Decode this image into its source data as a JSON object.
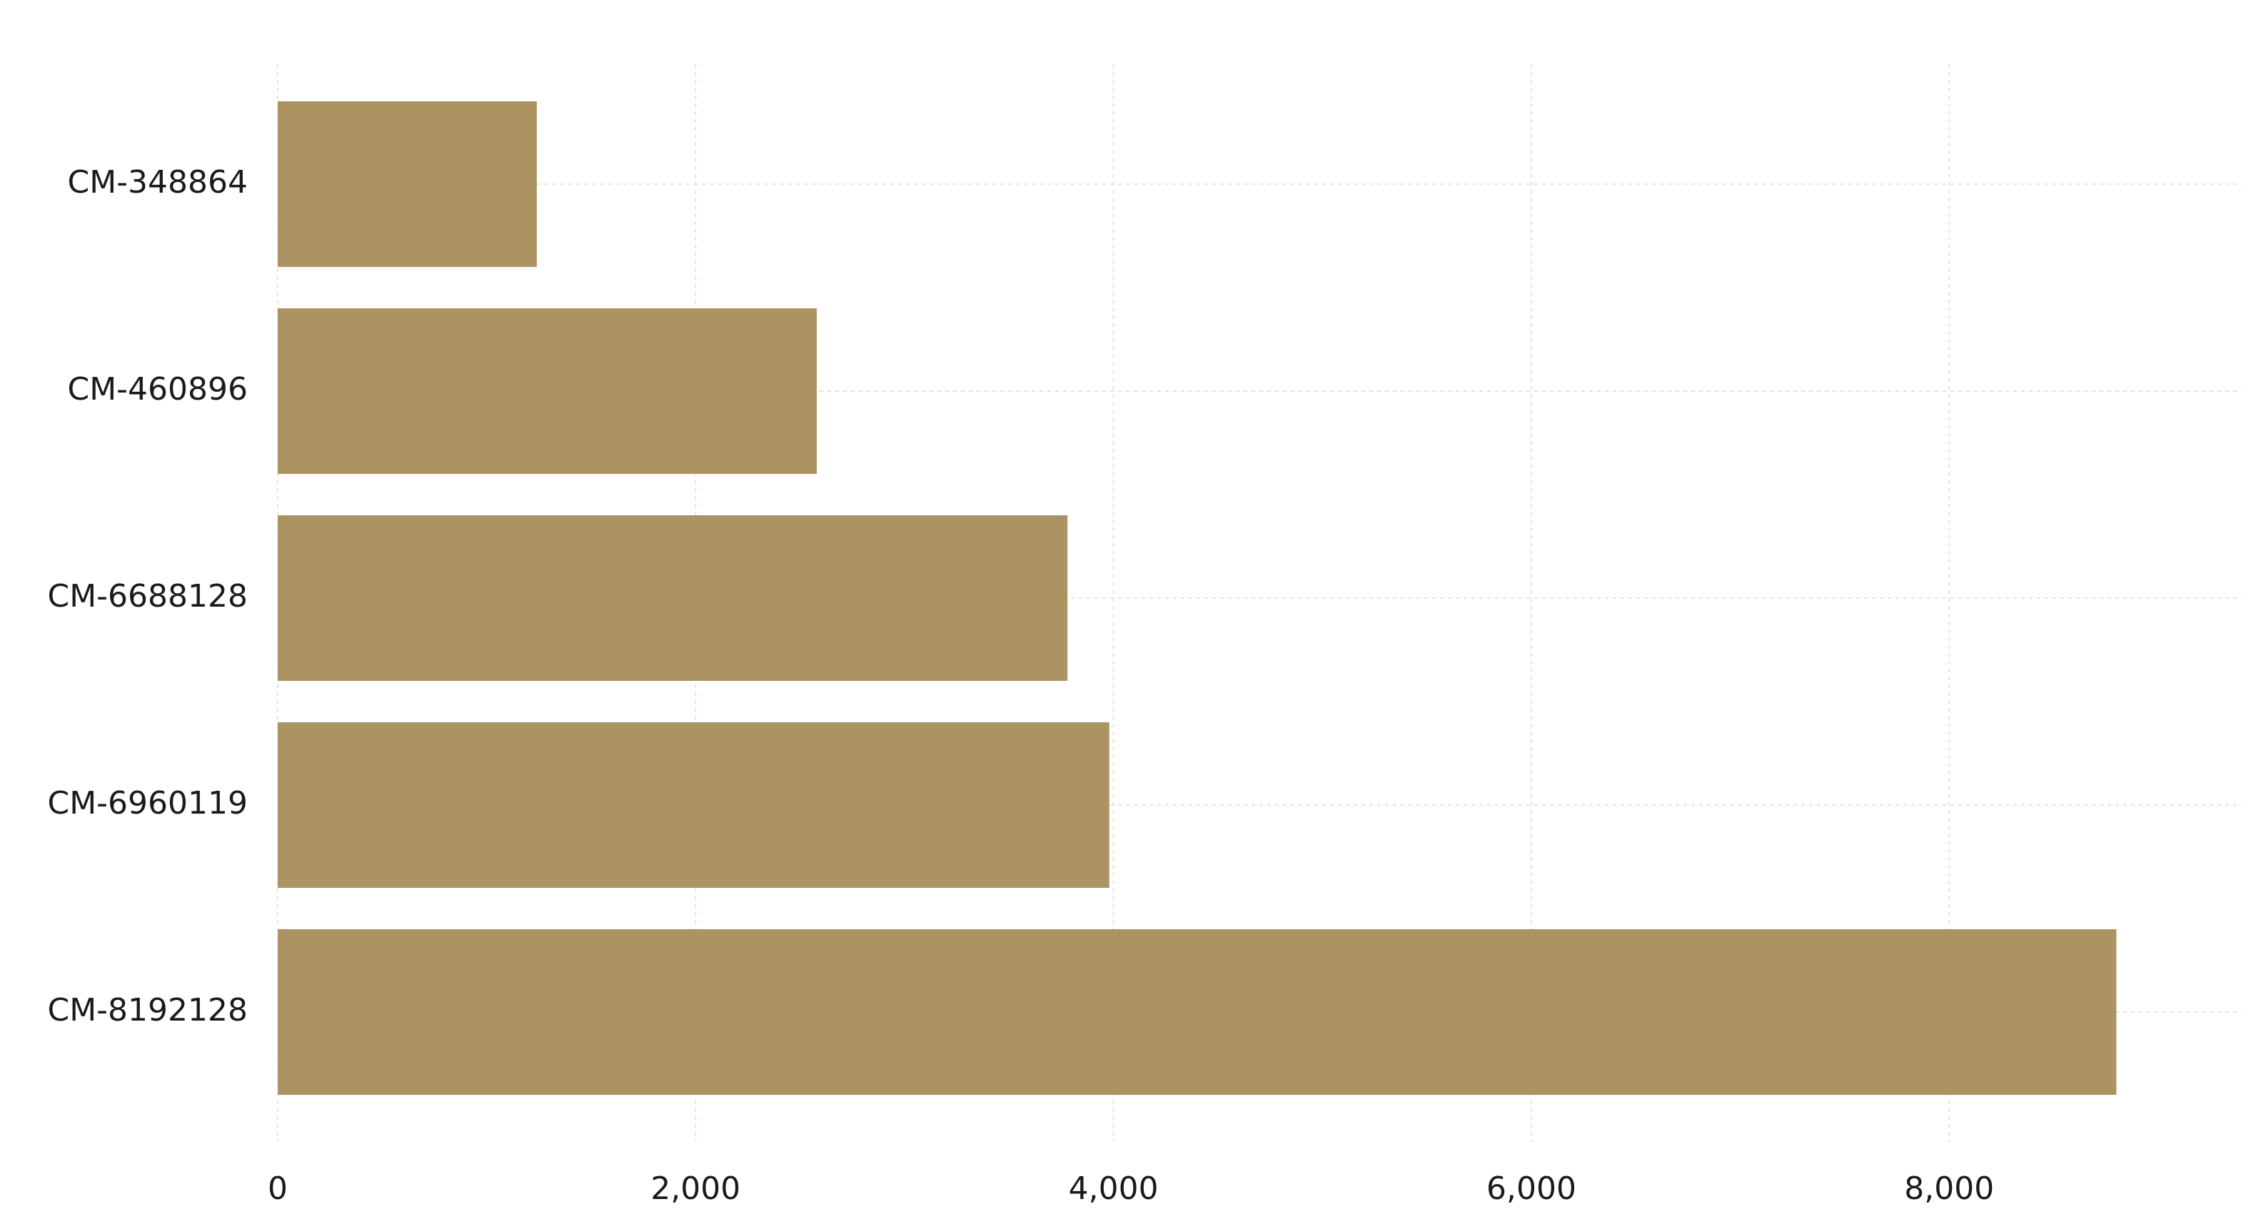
{
  "chart_data": {
    "type": "bar",
    "orientation": "horizontal",
    "title": "",
    "xlabel": "",
    "ylabel": "",
    "categories": [
      "CM-348864",
      "CM-460896",
      "CM-6688128",
      "CM-6960119",
      "CM-8192128"
    ],
    "values": [
      1240,
      2580,
      3780,
      3980,
      8800
    ],
    "xlim": [
      0,
      9400
    ],
    "xticks": [
      0,
      2000,
      4000,
      6000,
      8000
    ],
    "xtick_labels": [
      "0",
      "2,000",
      "4,000",
      "6,000",
      "8,000"
    ],
    "grid": true,
    "legend": "none",
    "colors": {
      "bar": "#ab9362",
      "grid": "#f0dede",
      "text": "#1a1a1a",
      "background": "#ffffff"
    }
  }
}
